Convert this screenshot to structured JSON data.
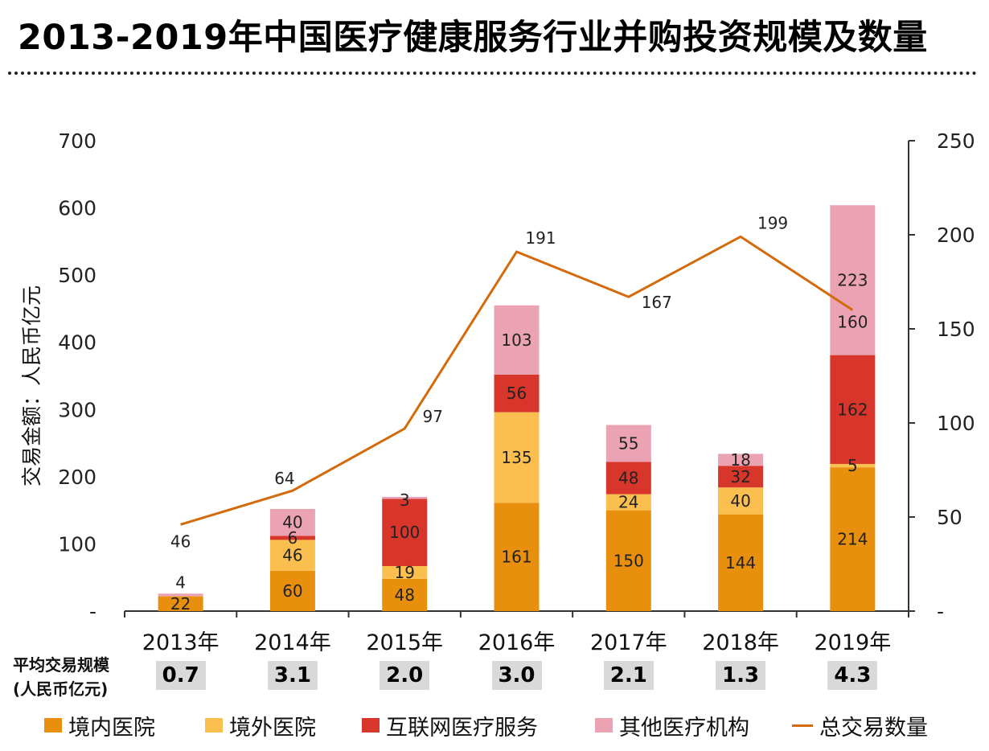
{
  "title": "2013-2019年中国医疗健康服务行业并购投资规模及数量",
  "colors": {
    "domestic": "#E8900E",
    "overseas": "#FBBF4F",
    "internet": "#D9362B",
    "other": "#EBA3B3",
    "line": "#D46A0B"
  },
  "chart_data": {
    "type": "bar",
    "stacked": true,
    "categories": [
      "2013年",
      "2014年",
      "2015年",
      "2016年",
      "2017年",
      "2018年",
      "2019年"
    ],
    "series": [
      {
        "name": "境内医院",
        "values": [
          22,
          60,
          48,
          161,
          150,
          144,
          214
        ],
        "color_key": "domestic"
      },
      {
        "name": "境外医院",
        "values": [
          0,
          46,
          19,
          135,
          24,
          40,
          5
        ],
        "color_key": "overseas"
      },
      {
        "name": "互联网医疗服务",
        "values": [
          0,
          6,
          100,
          56,
          48,
          32,
          162
        ],
        "color_key": "internet"
      },
      {
        "name": "其他医疗机构",
        "values": [
          4,
          40,
          3,
          103,
          55,
          18,
          223
        ],
        "color_key": "other"
      }
    ],
    "segment_labels": [
      [
        "22",
        "",
        "",
        "4"
      ],
      [
        "60",
        "46",
        "6",
        "40"
      ],
      [
        "48",
        "19",
        "100",
        "3"
      ],
      [
        "161",
        "135",
        "56",
        "103"
      ],
      [
        "150",
        "24",
        "48",
        "55"
      ],
      [
        "144",
        "40",
        "32",
        "18"
      ],
      [
        "214",
        "5",
        "162",
        "223"
      ]
    ],
    "line_series": {
      "name": "总交易数量",
      "axis": "right",
      "values": [
        46,
        64,
        97,
        191,
        167,
        199,
        160
      ],
      "color_key": "line"
    },
    "ylabel": "交易金额：人民币亿元",
    "y_left": {
      "min": 0,
      "max": 700,
      "ticks": [
        "700",
        "600",
        "500",
        "400",
        "300",
        "200",
        "100",
        "-"
      ]
    },
    "y_right": {
      "min": 0,
      "max": 250,
      "ticks": [
        "250",
        "200",
        "150",
        "100",
        "50",
        "-"
      ]
    },
    "grid": false,
    "legend_position": "bottom"
  },
  "avg": {
    "label": "平均交易规模\n(人民币亿元)",
    "values": [
      "0.7",
      "3.1",
      "2.0",
      "3.0",
      "2.1",
      "1.3",
      "4.3"
    ]
  }
}
